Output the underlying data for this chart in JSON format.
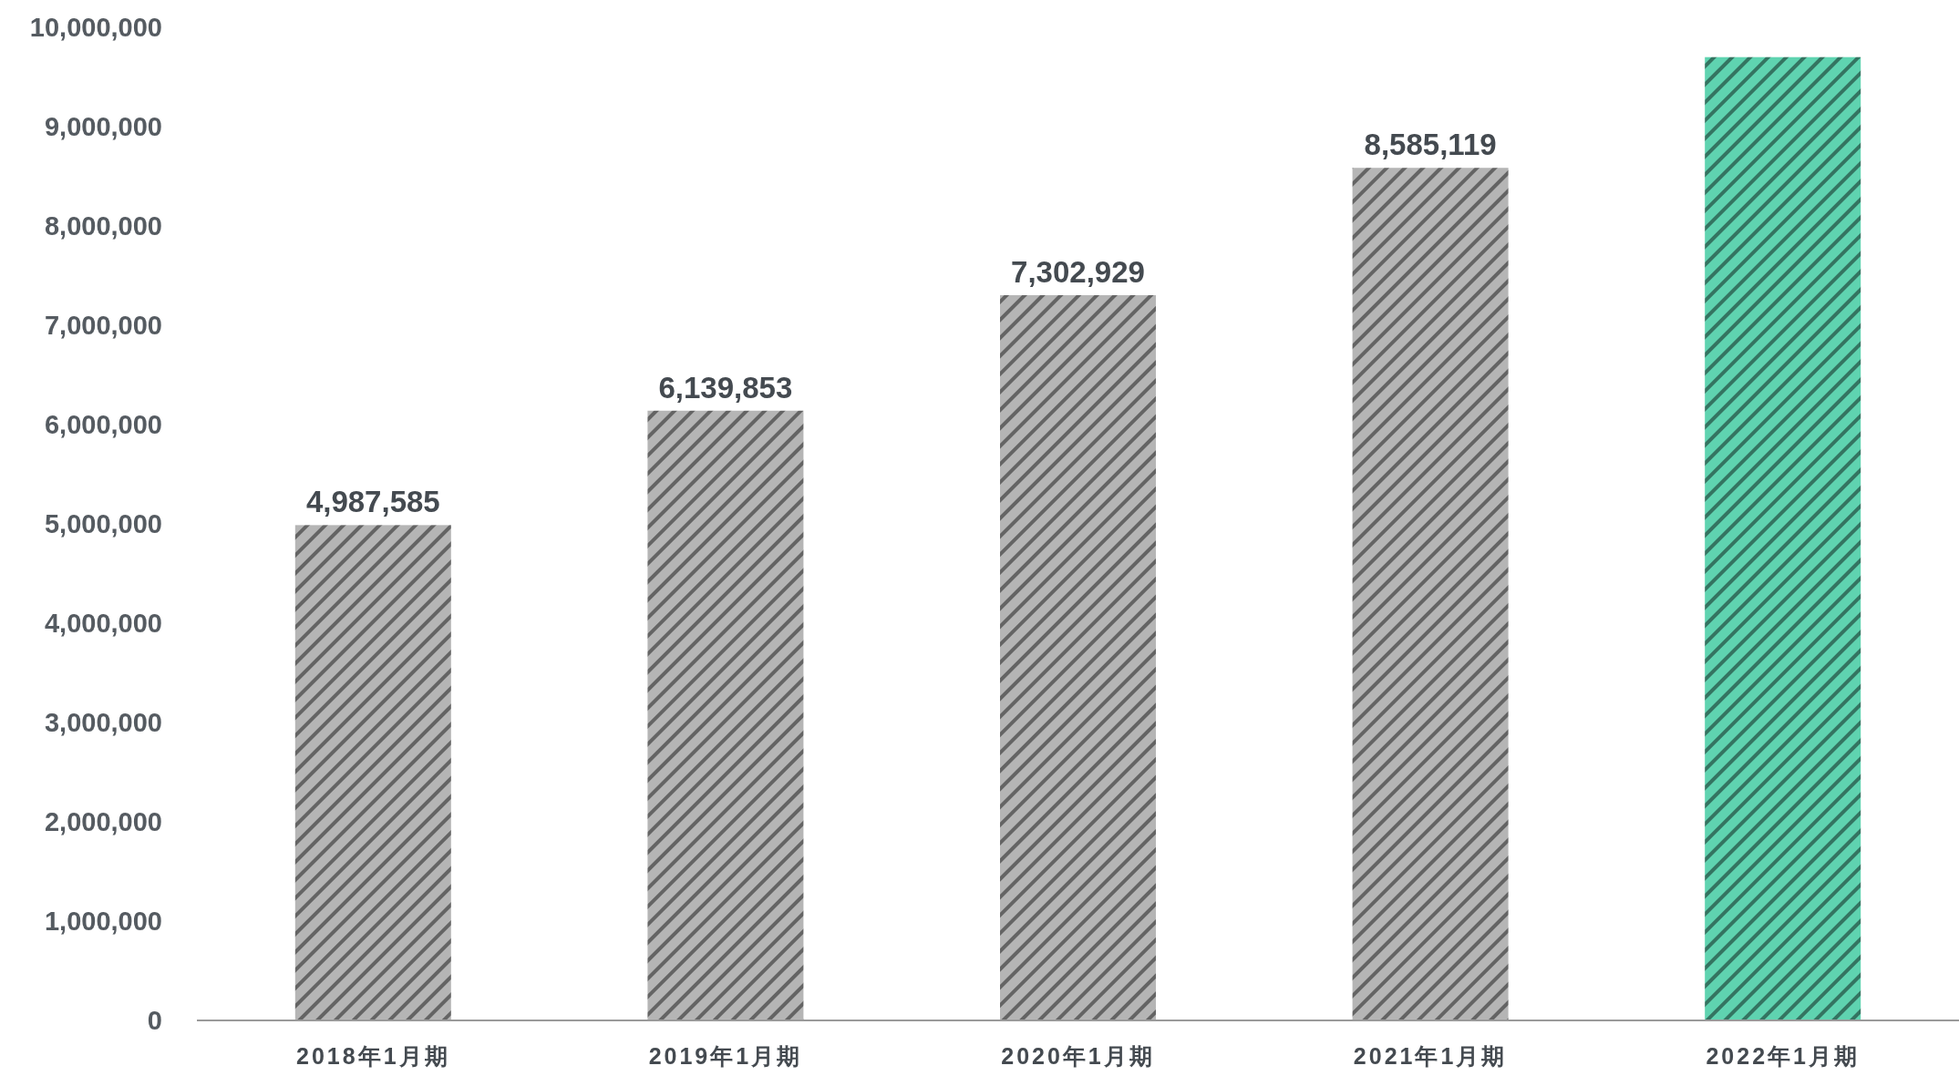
{
  "chart_data": {
    "type": "bar",
    "categories": [
      "2018年1月期",
      "2019年1月期",
      "2020年1月期",
      "2021年1月期",
      "2022年1月期"
    ],
    "values": [
      4987585,
      6139853,
      7302929,
      8585119,
      9700000
    ],
    "colors": [
      "#b5b5b5",
      "#b5b5b5",
      "#b5b5b5",
      "#b5b5b5",
      "#5fd3b0"
    ],
    "value_labels": [
      "4,987,585",
      "6,139,853",
      "7,302,929",
      "8,585,119",
      null
    ],
    "ylim": [
      0,
      10000000
    ],
    "yticks": [
      {
        "value": 0,
        "label": "0"
      },
      {
        "value": 1000000,
        "label": "1,000,000"
      },
      {
        "value": 2000000,
        "label": "2,000,000"
      },
      {
        "value": 3000000,
        "label": "3,000,000"
      },
      {
        "value": 4000000,
        "label": "4,000,000"
      },
      {
        "value": 5000000,
        "label": "5,000,000"
      },
      {
        "value": 6000000,
        "label": "6,000,000"
      },
      {
        "value": 7000000,
        "label": "7,000,000"
      },
      {
        "value": 8000000,
        "label": "8,000,000"
      },
      {
        "value": 9000000,
        "label": "9,000,000"
      },
      {
        "value": 10000000,
        "label": "10,000,000"
      }
    ]
  }
}
